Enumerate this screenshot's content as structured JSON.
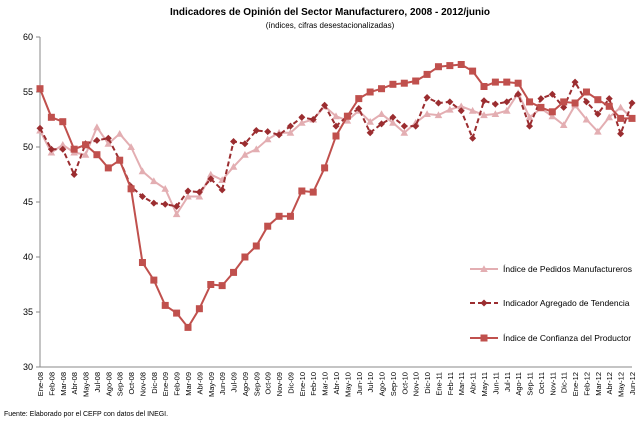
{
  "chart_data": {
    "type": "line",
    "title": "Indicadores de Opinión del Sector Manufacturero, 2008 - 2012/junio",
    "subtitle": "(índices, cifras desestacionalizadas)",
    "source": "Fuente: Elaborado por el CEFP con datos del INEGI.",
    "categories": [
      "Ene-08",
      "Feb-08",
      "Mar-08",
      "Abr-08",
      "May-08",
      "Jul-08",
      "Ago-08",
      "Sep-08",
      "Oct-08",
      "Nov-08",
      "Dic-08",
      "Ene-09",
      "Feb-09",
      "Mar-09",
      "Abr-09",
      "May-09",
      "Jun-09",
      "Jul-09",
      "Ago-09",
      "Sep-09",
      "Oct-09",
      "Nov-09",
      "Dic-09",
      "Ene-10",
      "Feb-10",
      "Mar-10",
      "Abr-10",
      "May-10",
      "Jun-10",
      "Jul-10",
      "Ago-10",
      "Sep-10",
      "Oct-10",
      "Nov-10",
      "Dic-10",
      "Ene-11",
      "Feb-11",
      "Mar-11",
      "Abr-11",
      "May-11",
      "Jun-11",
      "Jul-11",
      "Ago-11",
      "Sep-11",
      "Oct-11",
      "Nov-11",
      "Dic-11",
      "Ene-12",
      "Feb-12",
      "Mar-12",
      "Abr-12",
      "May-12",
      "Jun-12"
    ],
    "series": [
      {
        "name": "Índice de Pedidos Manufactureros",
        "color": "#e3aeb2",
        "marker": "triangle",
        "dash": false,
        "values": [
          51.5,
          49.5,
          50.2,
          49.5,
          49.3,
          51.8,
          50.3,
          51.2,
          50.0,
          47.8,
          46.9,
          46.2,
          43.9,
          45.5,
          45.5,
          47.5,
          47.0,
          48.2,
          49.3,
          49.8,
          50.7,
          51.3,
          51.3,
          52.2,
          52.5,
          53.7,
          52.8,
          52.4,
          53.3,
          52.3,
          53.0,
          52.2,
          51.3,
          52.2,
          53.0,
          52.9,
          53.4,
          53.7,
          53.3,
          52.9,
          53.0,
          53.3,
          54.9,
          52.7,
          53.5,
          52.8,
          52.0,
          53.8,
          52.5,
          51.4,
          52.7,
          53.6,
          52.6
        ]
      },
      {
        "name": "Indicador Agregado de Tendencia",
        "color": "#9b2d30",
        "marker": "diamond",
        "dash": true,
        "values": [
          51.7,
          49.8,
          49.8,
          47.5,
          50.3,
          50.6,
          50.8,
          48.8,
          46.4,
          45.5,
          44.9,
          44.8,
          44.6,
          46.0,
          45.9,
          47.1,
          46.1,
          50.5,
          50.3,
          51.5,
          51.4,
          51.1,
          51.9,
          52.7,
          52.5,
          53.8,
          51.9,
          52.8,
          53.5,
          51.3,
          52.1,
          52.7,
          51.9,
          51.9,
          54.5,
          54.0,
          54.1,
          53.3,
          50.8,
          54.2,
          53.9,
          54.1,
          54.8,
          51.9,
          54.4,
          54.8,
          53.6,
          55.9,
          54.1,
          53.0,
          54.4,
          51.2,
          54.0
        ]
      },
      {
        "name": "Índice de Confianza  del Productor",
        "color": "#c0504d",
        "marker": "square",
        "dash": false,
        "values": [
          55.3,
          52.7,
          52.3,
          49.8,
          50.2,
          49.3,
          48.1,
          48.8,
          46.2,
          39.5,
          37.9,
          35.6,
          34.9,
          33.6,
          35.3,
          37.5,
          37.4,
          38.6,
          40.0,
          41.0,
          42.8,
          43.7,
          43.7,
          46.0,
          45.9,
          48.1,
          51.0,
          52.8,
          54.4,
          55.0,
          55.3,
          55.7,
          55.8,
          56.0,
          56.6,
          57.3,
          57.4,
          57.5,
          56.9,
          55.5,
          55.9,
          55.9,
          55.8,
          54.1,
          53.6,
          53.2,
          54.1,
          54.0,
          55.0,
          54.3,
          53.7,
          52.6,
          52.6
        ]
      }
    ],
    "ylim": [
      30,
      60
    ],
    "yticks": [
      30,
      35,
      40,
      45,
      50,
      55,
      60
    ],
    "grid": false,
    "legend": "right"
  }
}
